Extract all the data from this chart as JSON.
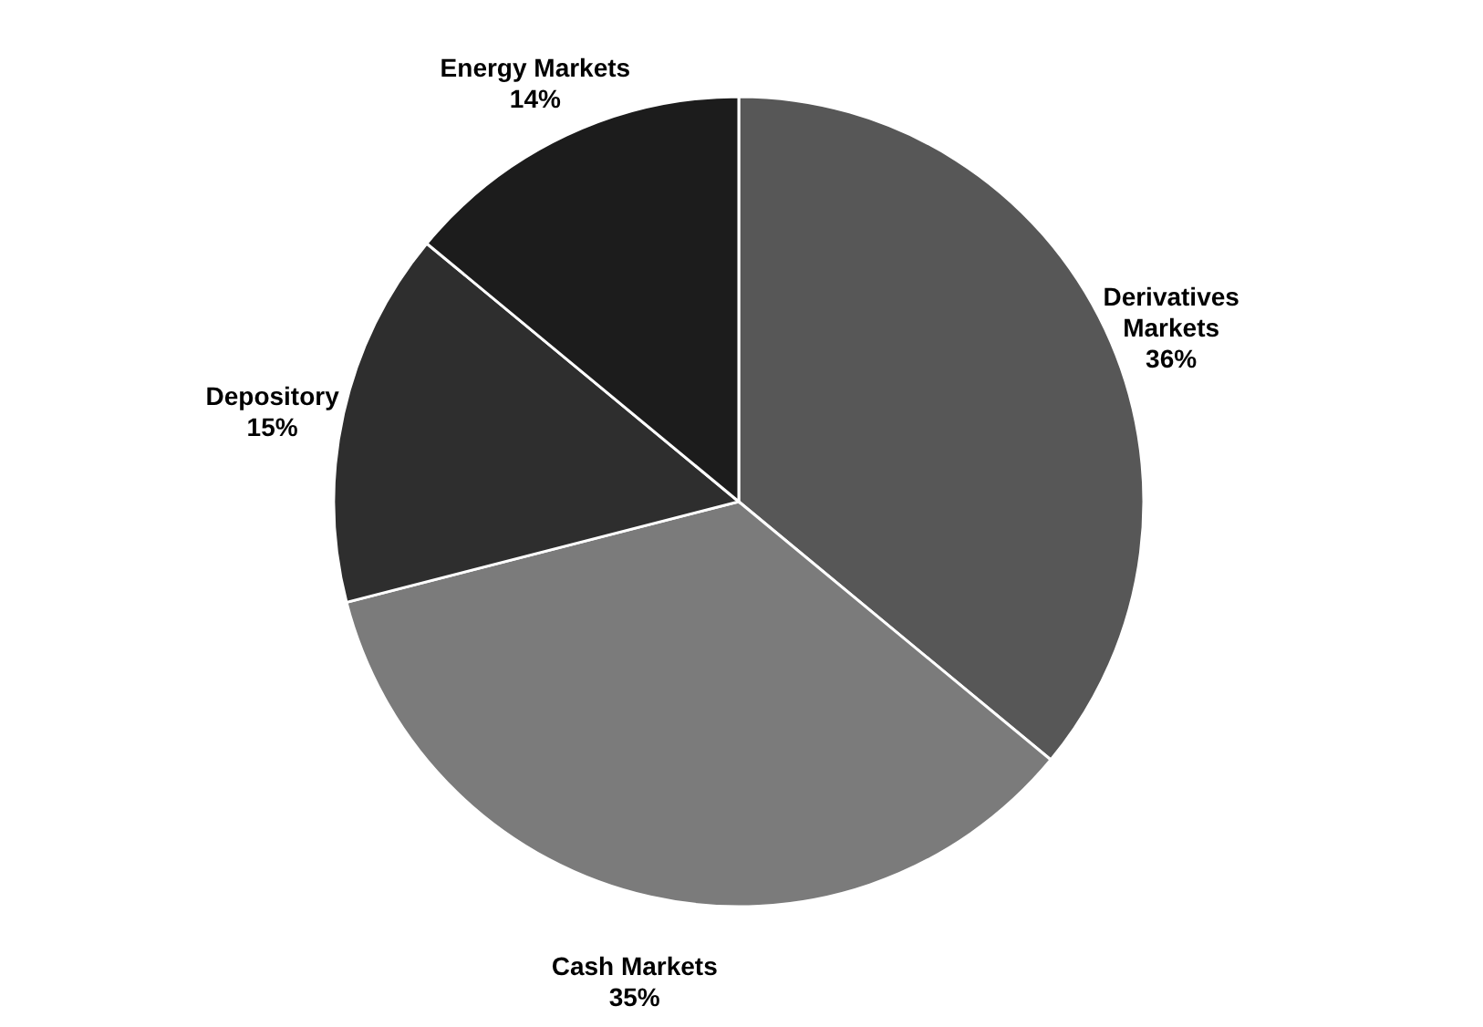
{
  "chart_data": {
    "type": "pie",
    "categories": [
      "Derivatives Markets",
      "Cash Markets",
      "Depository",
      "Energy Markets"
    ],
    "values": [
      36,
      35,
      15,
      14
    ],
    "colors": [
      "#575757",
      "#7b7b7b",
      "#2e2e2e",
      "#1c1c1c"
    ],
    "value_labels": [
      "36%",
      "35%",
      "15%",
      "14%"
    ],
    "legend": false
  }
}
